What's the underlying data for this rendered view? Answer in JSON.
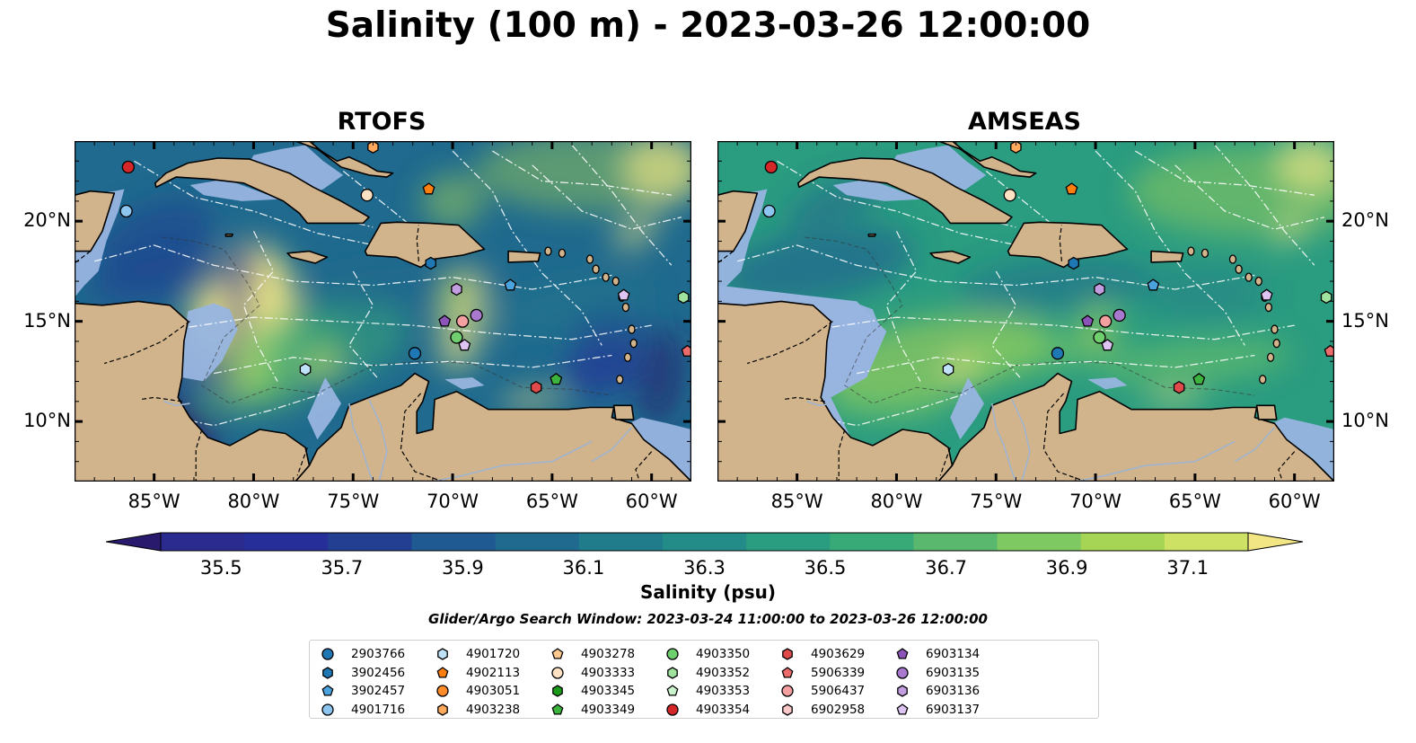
{
  "title": "Salinity (100 m) - 2023-03-26 12:00:00",
  "panels": [
    {
      "title": "RTOFS",
      "model": "rtofs"
    },
    {
      "title": "AMSEAS",
      "model": "amseas"
    }
  ],
  "map_extent": {
    "lon": [
      -89,
      -58
    ],
    "lat": [
      7,
      24
    ]
  },
  "x_ticks": [
    {
      "value": -85,
      "label": "85°W"
    },
    {
      "value": -80,
      "label": "80°W"
    },
    {
      "value": -75,
      "label": "75°W"
    },
    {
      "value": -70,
      "label": "70°W"
    },
    {
      "value": -65,
      "label": "65°W"
    },
    {
      "value": -60,
      "label": "60°W"
    }
  ],
  "y_ticks": [
    {
      "value": 20,
      "label": "20°N"
    },
    {
      "value": 15,
      "label": "15°N"
    },
    {
      "value": 10,
      "label": "10°N"
    }
  ],
  "colorbar": {
    "label": "Salinity (psu)",
    "min": 35.4,
    "max": 37.2,
    "extend": "both",
    "colors": [
      "#2a1a6e",
      "#2b2a8e",
      "#262f99",
      "#223f91",
      "#1f5a92",
      "#1f6a8e",
      "#207b8b",
      "#238b88",
      "#2a9c80",
      "#38aa77",
      "#5ab86e",
      "#7ec962",
      "#a6d455",
      "#cde164",
      "#f2e684"
    ],
    "ticks": [
      35.5,
      35.7,
      35.9,
      36.1,
      36.3,
      36.5,
      36.7,
      36.9,
      37.1
    ],
    "tick_labels": [
      "35.5",
      "35.7",
      "35.9",
      "36.1",
      "36.3",
      "36.5",
      "36.7",
      "36.9",
      "37.1"
    ]
  },
  "search_window": "Glider/Argo Search Window: 2023-03-24 11:00:00 to 2023-03-26 12:00:00",
  "colors": {
    "land": "#d2b48c",
    "shallow": "#98b5e0",
    "coast": "#000000"
  },
  "legend": [
    {
      "id": "2903766",
      "marker": "circle",
      "color": "#1f77b4"
    },
    {
      "id": "3902456",
      "marker": "hexagon",
      "color": "#1f77b4"
    },
    {
      "id": "3902457",
      "marker": "pentagon",
      "color": "#4aa3df"
    },
    {
      "id": "4901716",
      "marker": "circle",
      "color": "#8cc5ef"
    },
    {
      "id": "4901720",
      "marker": "hexagon",
      "color": "#bfe2f8"
    },
    {
      "id": "4902113",
      "marker": "pentagon",
      "color": "#ff7f0e"
    },
    {
      "id": "4903051",
      "marker": "circle",
      "color": "#ff8c28"
    },
    {
      "id": "4903238",
      "marker": "hexagon",
      "color": "#ffa95c"
    },
    {
      "id": "4903278",
      "marker": "pentagon",
      "color": "#ffc88f"
    },
    {
      "id": "4903333",
      "marker": "circle",
      "color": "#ffe2c4"
    },
    {
      "id": "4903345",
      "marker": "hexagon",
      "color": "#1a9b1a"
    },
    {
      "id": "4903349",
      "marker": "pentagon",
      "color": "#3cb33c"
    },
    {
      "id": "4903350",
      "marker": "circle",
      "color": "#6fcf6f"
    },
    {
      "id": "4903352",
      "marker": "hexagon",
      "color": "#9fe39f"
    },
    {
      "id": "4903353",
      "marker": "pentagon",
      "color": "#ccf4cc"
    },
    {
      "id": "4903354",
      "marker": "circle",
      "color": "#d62728"
    },
    {
      "id": "4903629",
      "marker": "hexagon",
      "color": "#e04a4a"
    },
    {
      "id": "5906339",
      "marker": "pentagon",
      "color": "#ec6b6b"
    },
    {
      "id": "5906437",
      "marker": "circle",
      "color": "#f4a0a0"
    },
    {
      "id": "6902958",
      "marker": "hexagon",
      "color": "#fac8c8"
    },
    {
      "id": "6903134",
      "marker": "pentagon",
      "color": "#8c54b8"
    },
    {
      "id": "6903135",
      "marker": "circle",
      "color": "#a979cf"
    },
    {
      "id": "6903136",
      "marker": "hexagon",
      "color": "#c29ee0"
    },
    {
      "id": "6903137",
      "marker": "pentagon",
      "color": "#ddc4f2"
    }
  ],
  "platform_positions": [
    {
      "id": "4903354",
      "lon": -86.3,
      "lat": 22.7
    },
    {
      "id": "4901716",
      "lon": -86.4,
      "lat": 20.5
    },
    {
      "id": "4903238",
      "lon": -74.0,
      "lat": 23.7
    },
    {
      "id": "4903333",
      "lon": -74.3,
      "lat": 21.3
    },
    {
      "id": "4902113",
      "lon": -71.2,
      "lat": 21.6
    },
    {
      "id": "3902456",
      "lon": -71.1,
      "lat": 17.9
    },
    {
      "id": "3902457",
      "lon": -67.1,
      "lat": 16.8
    },
    {
      "id": "6903136",
      "lon": -69.8,
      "lat": 16.6
    },
    {
      "id": "6903137",
      "lon": -61.4,
      "lat": 16.3
    },
    {
      "id": "4903352",
      "lon": -58.4,
      "lat": 16.2
    },
    {
      "id": "6903135",
      "lon": -68.8,
      "lat": 15.3
    },
    {
      "id": "6903134",
      "lon": -70.4,
      "lat": 15.0
    },
    {
      "id": "5906437",
      "lon": -69.5,
      "lat": 15.0
    },
    {
      "id": "4903350",
      "lon": -69.8,
      "lat": 14.2
    },
    {
      "id": "6903137",
      "lon": -69.4,
      "lat": 13.8
    },
    {
      "id": "2903766",
      "lon": -71.9,
      "lat": 13.4
    },
    {
      "id": "5906339",
      "lon": -58.2,
      "lat": 13.5
    },
    {
      "id": "4901720",
      "lon": -77.4,
      "lat": 12.6
    },
    {
      "id": "4903349",
      "lon": -64.8,
      "lat": 12.1
    },
    {
      "id": "4903629",
      "lon": -65.8,
      "lat": 11.7
    }
  ]
}
